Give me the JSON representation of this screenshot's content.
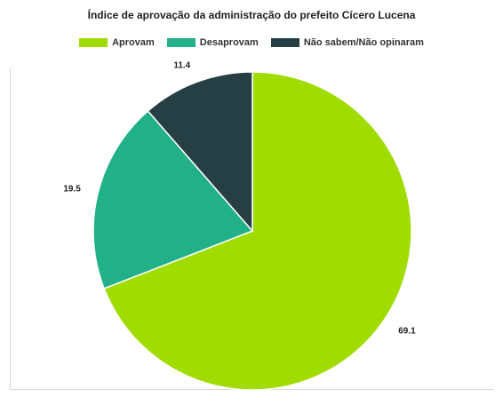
{
  "chart_data": {
    "type": "pie",
    "title": "Índice de aprovação da administração do prefeito Cícero Lucena",
    "categories": [
      "Aprovam",
      "Desaprovam",
      "Não sabem/Não opinaram"
    ],
    "values": [
      69.1,
      19.5,
      11.4
    ],
    "value_labels": [
      "69.1",
      "19.5",
      "11.4"
    ],
    "colors": [
      "#a0dc00",
      "#21b087",
      "#263f45"
    ],
    "legend_position": "top"
  }
}
